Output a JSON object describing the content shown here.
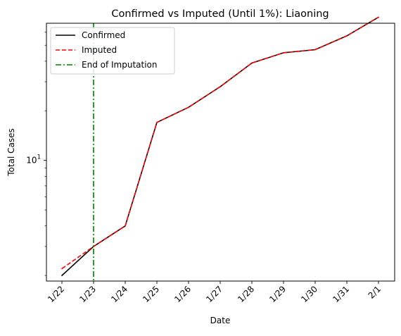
{
  "chart_data": {
    "type": "line",
    "title": "Confirmed vs Imputed (Until 1%): Liaoning",
    "xlabel": "Date",
    "ylabel": "Total Cases",
    "yscale": "log",
    "ylim": [
      1.85,
      68
    ],
    "grid": false,
    "legend": "top-left",
    "categories": [
      "1/22",
      "1/23",
      "1/24",
      "1/25",
      "1/26",
      "1/27",
      "1/28",
      "1/29",
      "1/30",
      "1/31",
      "2/1"
    ],
    "y_ticks": [
      {
        "value": 10,
        "label": "10^1"
      }
    ],
    "series": [
      {
        "name": "Confirmed",
        "color": "#000000",
        "style": "solid",
        "values": [
          2,
          3,
          4,
          17,
          21,
          28,
          39,
          45,
          47,
          57,
          74
        ]
      },
      {
        "name": "Imputed",
        "color": "#ff0000",
        "style": "dashed",
        "values": [
          2.2,
          3,
          4,
          17,
          21,
          28,
          39,
          45,
          47,
          57,
          74
        ]
      }
    ],
    "vline": {
      "name": "End of Imputation",
      "x": "1/23",
      "color": "#008000",
      "style": "dashdot"
    }
  }
}
